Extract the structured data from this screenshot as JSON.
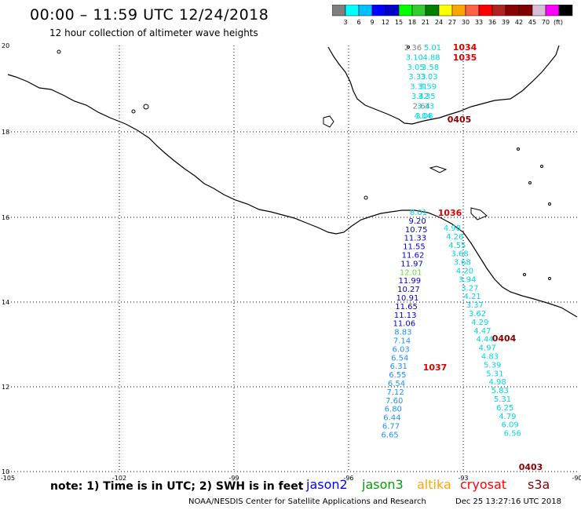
{
  "header": {
    "title": "00:00 – 11:59 UTC 12/24/2018",
    "subtitle": "12 hour collection of altimeter wave heights"
  },
  "colorbar": {
    "unit": "(ft)",
    "colors": [
      "#7f7f7f",
      "#00ffff",
      "#00bfff",
      "#0000ff",
      "#0000cd",
      "#00ff00",
      "#32cd32",
      "#008000",
      "#ffff00",
      "#ffa500",
      "#ff6347",
      "#ff0000",
      "#b22222",
      "#8b0000",
      "#800000",
      "#d8bfd8",
      "#ff00ff",
      "#000000"
    ],
    "labels": [
      "3",
      "6",
      "9",
      "12",
      "15",
      "18",
      "21",
      "24",
      "27",
      "30",
      "33",
      "36",
      "39",
      "42",
      "45",
      "70"
    ]
  },
  "map": {
    "lat_ticks": [
      "20",
      "18",
      "16",
      "14",
      "12",
      "10"
    ],
    "lon_ticks": [
      "-105",
      "-102",
      "-99",
      "-96",
      "-93",
      "-90"
    ],
    "track_a": [
      {
        "v": "2.36",
        "c": "#808080"
      },
      {
        "v": "3.10",
        "c": "#00d8e0"
      },
      {
        "v": "3.05",
        "c": "#00d8e0"
      },
      {
        "v": "3.33",
        "c": "#00d8e0"
      },
      {
        "v": "3.31",
        "c": "#00d8e0"
      },
      {
        "v": "3.42",
        "c": "#00d8e0"
      },
      {
        "v": "2.64",
        "c": "#808080"
      },
      {
        "v": "4.04",
        "c": "#00d8e0"
      }
    ],
    "track_b": [
      {
        "v": "5.01",
        "c": "#00d8e0"
      },
      {
        "v": "4.88",
        "c": "#00d8e0"
      },
      {
        "v": "3.58",
        "c": "#00d8e0"
      },
      {
        "v": "3.03",
        "c": "#00d8e0"
      },
      {
        "v": "3.59",
        "c": "#00d8e0"
      },
      {
        "v": "3.35",
        "c": "#00d8e0"
      },
      {
        "v": "3.33",
        "c": "#00d8e0"
      },
      {
        "v": "3.08",
        "c": "#00d8e0"
      }
    ],
    "track_c": [
      {
        "v": "8.01",
        "c": "#00d8e0"
      },
      {
        "v": "9.20",
        "c": "#0000cc"
      },
      {
        "v": "10.75",
        "c": "#0000cc"
      },
      {
        "v": "11.33",
        "c": "#0000cc"
      },
      {
        "v": "11.55",
        "c": "#0000cc"
      },
      {
        "v": "11.62",
        "c": "#0000cc"
      },
      {
        "v": "11.97",
        "c": "#0000cc"
      },
      {
        "v": "12.01",
        "c": "#66dd33"
      },
      {
        "v": "11.99",
        "c": "#0000cc"
      },
      {
        "v": "10.27",
        "c": "#0000cc"
      },
      {
        "v": "10.91",
        "c": "#0000cc"
      },
      {
        "v": "11.65",
        "c": "#0000cc"
      },
      {
        "v": "11.13",
        "c": "#0000cc"
      },
      {
        "v": "11.06",
        "c": "#0000cc"
      },
      {
        "v": "8.83",
        "c": "#1e90ff"
      },
      {
        "v": "7.14",
        "c": "#1e90ff"
      },
      {
        "v": "6.03",
        "c": "#1e90ff"
      },
      {
        "v": "6.54",
        "c": "#1e90ff"
      },
      {
        "v": "6.31",
        "c": "#1e90ff"
      },
      {
        "v": "6.55",
        "c": "#1e90ff"
      },
      {
        "v": "6.54",
        "c": "#1e90ff"
      },
      {
        "v": "7.12",
        "c": "#1e90ff"
      },
      {
        "v": "7.60",
        "c": "#1e90ff"
      },
      {
        "v": "6.80",
        "c": "#1e90ff"
      },
      {
        "v": "6.44",
        "c": "#1e90ff"
      },
      {
        "v": "6.77",
        "c": "#1e90ff"
      },
      {
        "v": "6.65",
        "c": "#1e90ff"
      }
    ],
    "track_d": [
      {
        "v": "4.98",
        "c": "#00d8e0"
      },
      {
        "v": "4.26",
        "c": "#00d8e0"
      },
      {
        "v": "4.55",
        "c": "#00d8e0"
      },
      {
        "v": "3.68",
        "c": "#00d8e0"
      },
      {
        "v": "3.68",
        "c": "#00d8e0"
      },
      {
        "v": "4.20",
        "c": "#00d8e0"
      },
      {
        "v": "3.94",
        "c": "#00d8e0"
      },
      {
        "v": "3.27",
        "c": "#00d8e0"
      },
      {
        "v": "4.21",
        "c": "#00d8e0"
      },
      {
        "v": "3.37",
        "c": "#00d8e0"
      },
      {
        "v": "3.62",
        "c": "#00d8e0"
      },
      {
        "v": "4.29",
        "c": "#00d8e0"
      },
      {
        "v": "4.47",
        "c": "#00d8e0"
      },
      {
        "v": "4.44",
        "c": "#00d8e0"
      },
      {
        "v": "4.97",
        "c": "#00d8e0"
      },
      {
        "v": "4.83",
        "c": "#00d8e0"
      },
      {
        "v": "5.39",
        "c": "#00d8e0"
      },
      {
        "v": "5.31",
        "c": "#00d8e0"
      },
      {
        "v": "4.98",
        "c": "#00d8e0"
      },
      {
        "v": "5.83",
        "c": "#00d8e0"
      },
      {
        "v": "5.31",
        "c": "#00d8e0"
      },
      {
        "v": "6.25",
        "c": "#00d8e0"
      },
      {
        "v": "4.79",
        "c": "#00d8e0"
      },
      {
        "v": "6.09",
        "c": "#00d8e0"
      },
      {
        "v": "6.56",
        "c": "#00d8e0"
      }
    ],
    "times": [
      {
        "t": "1034",
        "c": "#dd0000"
      },
      {
        "t": "1035",
        "c": "#dd0000"
      },
      {
        "t": "0405",
        "c": "#8b0000"
      },
      {
        "t": "1036",
        "c": "#dd0000"
      },
      {
        "t": "0404",
        "c": "#8b0000"
      },
      {
        "t": "1037",
        "c": "#dd0000"
      },
      {
        "t": "0403",
        "c": "#8b0000"
      }
    ]
  },
  "footer": {
    "note": "note: 1) Time is in UTC; 2) SWH is in feet",
    "satellites": [
      {
        "name": "jason2",
        "color": "#0000ff"
      },
      {
        "name": "jason3",
        "color": "#00a000"
      },
      {
        "name": "altika",
        "color": "#ffa500"
      },
      {
        "name": "cryosat",
        "color": "#ff0000"
      },
      {
        "name": "s3a",
        "color": "#8b0000"
      }
    ],
    "credit": "NOAA/NESDIS Center for Satellite Applications and Research",
    "timestamp": "Dec 25 13:27:16 UTC 2018"
  }
}
